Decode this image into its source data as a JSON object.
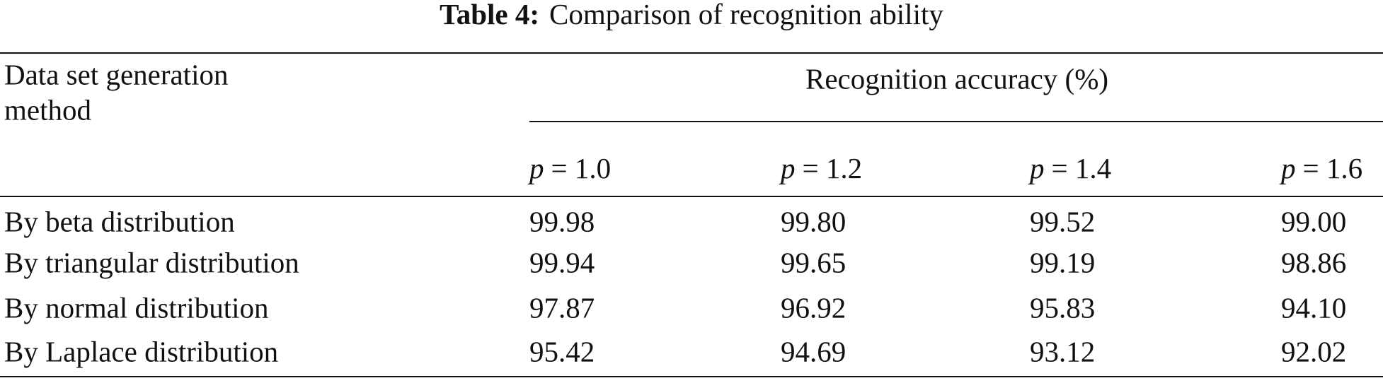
{
  "caption": {
    "label": "Table 4:",
    "title": "Comparison of recognition ability"
  },
  "table": {
    "row_header": [
      "Data set generation",
      "method"
    ],
    "group_header": "Recognition accuracy (%)",
    "columns": [
      {
        "symbol": "p",
        "relation": "= 1.0"
      },
      {
        "symbol": "p",
        "relation": "= 1.2"
      },
      {
        "symbol": "p",
        "relation": "= 1.4"
      },
      {
        "symbol": "p",
        "relation": "= 1.6"
      }
    ],
    "rows": [
      [
        "By beta distribution",
        "99.98",
        "99.80",
        "99.52",
        "99.00"
      ],
      [
        "By triangular distribution",
        "99.94",
        "99.65",
        "99.19",
        "98.86"
      ],
      [
        "By normal distribution",
        "97.87",
        "96.92",
        "95.83",
        "94.10"
      ],
      [
        "By Laplace distribution",
        "95.42",
        "94.69",
        "93.12",
        "92.02"
      ]
    ]
  }
}
